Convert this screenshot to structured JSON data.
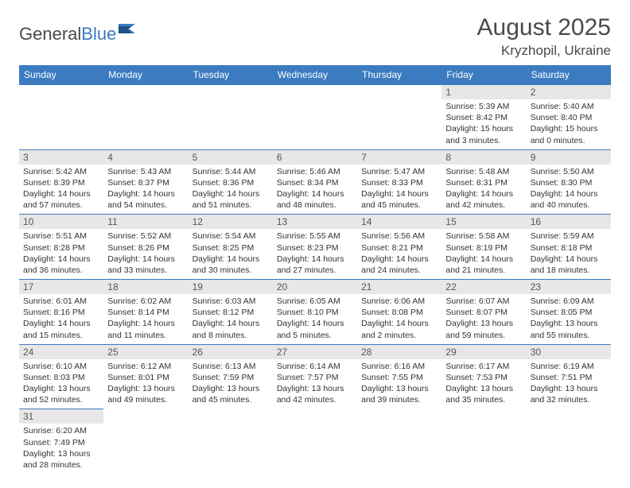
{
  "logo": {
    "part1": "General",
    "part2": "Blue"
  },
  "title": "August 2025",
  "location": "Kryzhopil, Ukraine",
  "colors": {
    "header_bg": "#3b7bbf",
    "header_text": "#ffffff",
    "daynum_bg": "#e7e7e7",
    "border": "#3b7bbf",
    "text": "#333333"
  },
  "weekdays": [
    "Sunday",
    "Monday",
    "Tuesday",
    "Wednesday",
    "Thursday",
    "Friday",
    "Saturday"
  ],
  "weeks": [
    [
      null,
      null,
      null,
      null,
      null,
      {
        "n": "1",
        "sr": "Sunrise: 5:39 AM",
        "ss": "Sunset: 8:42 PM",
        "dl": "Daylight: 15 hours and 3 minutes."
      },
      {
        "n": "2",
        "sr": "Sunrise: 5:40 AM",
        "ss": "Sunset: 8:40 PM",
        "dl": "Daylight: 15 hours and 0 minutes."
      }
    ],
    [
      {
        "n": "3",
        "sr": "Sunrise: 5:42 AM",
        "ss": "Sunset: 8:39 PM",
        "dl": "Daylight: 14 hours and 57 minutes."
      },
      {
        "n": "4",
        "sr": "Sunrise: 5:43 AM",
        "ss": "Sunset: 8:37 PM",
        "dl": "Daylight: 14 hours and 54 minutes."
      },
      {
        "n": "5",
        "sr": "Sunrise: 5:44 AM",
        "ss": "Sunset: 8:36 PM",
        "dl": "Daylight: 14 hours and 51 minutes."
      },
      {
        "n": "6",
        "sr": "Sunrise: 5:46 AM",
        "ss": "Sunset: 8:34 PM",
        "dl": "Daylight: 14 hours and 48 minutes."
      },
      {
        "n": "7",
        "sr": "Sunrise: 5:47 AM",
        "ss": "Sunset: 8:33 PM",
        "dl": "Daylight: 14 hours and 45 minutes."
      },
      {
        "n": "8",
        "sr": "Sunrise: 5:48 AM",
        "ss": "Sunset: 8:31 PM",
        "dl": "Daylight: 14 hours and 42 minutes."
      },
      {
        "n": "9",
        "sr": "Sunrise: 5:50 AM",
        "ss": "Sunset: 8:30 PM",
        "dl": "Daylight: 14 hours and 40 minutes."
      }
    ],
    [
      {
        "n": "10",
        "sr": "Sunrise: 5:51 AM",
        "ss": "Sunset: 8:28 PM",
        "dl": "Daylight: 14 hours and 36 minutes."
      },
      {
        "n": "11",
        "sr": "Sunrise: 5:52 AM",
        "ss": "Sunset: 8:26 PM",
        "dl": "Daylight: 14 hours and 33 minutes."
      },
      {
        "n": "12",
        "sr": "Sunrise: 5:54 AM",
        "ss": "Sunset: 8:25 PM",
        "dl": "Daylight: 14 hours and 30 minutes."
      },
      {
        "n": "13",
        "sr": "Sunrise: 5:55 AM",
        "ss": "Sunset: 8:23 PM",
        "dl": "Daylight: 14 hours and 27 minutes."
      },
      {
        "n": "14",
        "sr": "Sunrise: 5:56 AM",
        "ss": "Sunset: 8:21 PM",
        "dl": "Daylight: 14 hours and 24 minutes."
      },
      {
        "n": "15",
        "sr": "Sunrise: 5:58 AM",
        "ss": "Sunset: 8:19 PM",
        "dl": "Daylight: 14 hours and 21 minutes."
      },
      {
        "n": "16",
        "sr": "Sunrise: 5:59 AM",
        "ss": "Sunset: 8:18 PM",
        "dl": "Daylight: 14 hours and 18 minutes."
      }
    ],
    [
      {
        "n": "17",
        "sr": "Sunrise: 6:01 AM",
        "ss": "Sunset: 8:16 PM",
        "dl": "Daylight: 14 hours and 15 minutes."
      },
      {
        "n": "18",
        "sr": "Sunrise: 6:02 AM",
        "ss": "Sunset: 8:14 PM",
        "dl": "Daylight: 14 hours and 11 minutes."
      },
      {
        "n": "19",
        "sr": "Sunrise: 6:03 AM",
        "ss": "Sunset: 8:12 PM",
        "dl": "Daylight: 14 hours and 8 minutes."
      },
      {
        "n": "20",
        "sr": "Sunrise: 6:05 AM",
        "ss": "Sunset: 8:10 PM",
        "dl": "Daylight: 14 hours and 5 minutes."
      },
      {
        "n": "21",
        "sr": "Sunrise: 6:06 AM",
        "ss": "Sunset: 8:08 PM",
        "dl": "Daylight: 14 hours and 2 minutes."
      },
      {
        "n": "22",
        "sr": "Sunrise: 6:07 AM",
        "ss": "Sunset: 8:07 PM",
        "dl": "Daylight: 13 hours and 59 minutes."
      },
      {
        "n": "23",
        "sr": "Sunrise: 6:09 AM",
        "ss": "Sunset: 8:05 PM",
        "dl": "Daylight: 13 hours and 55 minutes."
      }
    ],
    [
      {
        "n": "24",
        "sr": "Sunrise: 6:10 AM",
        "ss": "Sunset: 8:03 PM",
        "dl": "Daylight: 13 hours and 52 minutes."
      },
      {
        "n": "25",
        "sr": "Sunrise: 6:12 AM",
        "ss": "Sunset: 8:01 PM",
        "dl": "Daylight: 13 hours and 49 minutes."
      },
      {
        "n": "26",
        "sr": "Sunrise: 6:13 AM",
        "ss": "Sunset: 7:59 PM",
        "dl": "Daylight: 13 hours and 45 minutes."
      },
      {
        "n": "27",
        "sr": "Sunrise: 6:14 AM",
        "ss": "Sunset: 7:57 PM",
        "dl": "Daylight: 13 hours and 42 minutes."
      },
      {
        "n": "28",
        "sr": "Sunrise: 6:16 AM",
        "ss": "Sunset: 7:55 PM",
        "dl": "Daylight: 13 hours and 39 minutes."
      },
      {
        "n": "29",
        "sr": "Sunrise: 6:17 AM",
        "ss": "Sunset: 7:53 PM",
        "dl": "Daylight: 13 hours and 35 minutes."
      },
      {
        "n": "30",
        "sr": "Sunrise: 6:19 AM",
        "ss": "Sunset: 7:51 PM",
        "dl": "Daylight: 13 hours and 32 minutes."
      }
    ],
    [
      {
        "n": "31",
        "sr": "Sunrise: 6:20 AM",
        "ss": "Sunset: 7:49 PM",
        "dl": "Daylight: 13 hours and 28 minutes."
      },
      null,
      null,
      null,
      null,
      null,
      null
    ]
  ]
}
